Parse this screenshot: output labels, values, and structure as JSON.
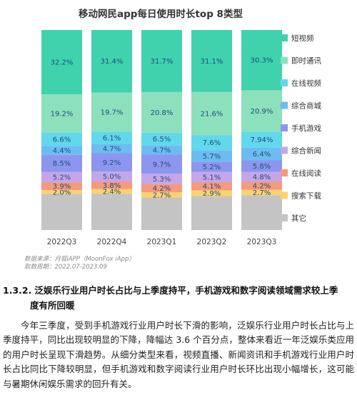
{
  "chart_data": {
    "type": "bar",
    "stacked": true,
    "title": "移动网民app每日使用时长top 8类型",
    "categories": [
      "2022Q3",
      "2022Q4",
      "2023Q1",
      "2023Q2",
      "2023Q3"
    ],
    "series": [
      {
        "name": "其它",
        "color": "#c4c4c4",
        "values": [
          18.0,
          18.2,
          16.6,
          17.0,
          17.5
        ],
        "labels": [
          "",
          "",
          "",
          "",
          ""
        ]
      },
      {
        "name": "搜索下载",
        "color": "#fbd36e",
        "values": [
          2.0,
          2.4,
          2.7,
          2.9,
          2.7
        ],
        "labels": [
          "2.0%",
          "2.4%",
          "2.7%",
          "2.9%",
          "2.7%"
        ]
      },
      {
        "name": "在线阅读",
        "color": "#f49a7e",
        "values": [
          3.9,
          3.8,
          4.2,
          4.1,
          4.2
        ],
        "labels": [
          "3.9%",
          "3.8%",
          "4.2%",
          "4.1%",
          "4.2%"
        ]
      },
      {
        "name": "综合新闻",
        "color": "#c5a6e9",
        "values": [
          5.2,
          5.0,
          5.3,
          5.1,
          4.8
        ],
        "labels": [
          "5.2%",
          "5.0%",
          "5.3%",
          "5.1%",
          "4.8%"
        ]
      },
      {
        "name": "手机游戏",
        "color": "#8c96ee",
        "values": [
          8.5,
          9.2,
          9.7,
          5.2,
          5.8
        ],
        "labels": [
          "8.5%",
          "9.2%",
          "9.7%",
          "5.2%",
          "5.8%"
        ]
      },
      {
        "name": "综合商城",
        "color": "#6cbcf1",
        "values": [
          4.4,
          4.7,
          4.7,
          5.7,
          6.4
        ],
        "labels": [
          "4.4%",
          "4.7%",
          "4.7%",
          "5.7%",
          "6.4%"
        ]
      },
      {
        "name": "在线视频",
        "color": "#61d8ec",
        "values": [
          6.6,
          6.1,
          6.5,
          7.6,
          7.94
        ],
        "labels": [
          "6.6%",
          "6.1%",
          "6.5%",
          "7.6%",
          "7.94%"
        ]
      },
      {
        "name": "即时通讯",
        "color": "#8de0bc",
        "values": [
          19.2,
          19.7,
          20.8,
          21.6,
          20.9
        ],
        "labels": [
          "19.2%",
          "19.7%",
          "20.8%",
          "21.6%",
          "20.9%"
        ]
      },
      {
        "name": "短视频",
        "color": "#3fd2ad",
        "values": [
          32.2,
          31.4,
          31.7,
          31.1,
          30.3
        ],
        "labels": [
          "32.2%",
          "31.4%",
          "31.7%",
          "31.1%",
          "30.3%"
        ]
      }
    ],
    "legend_order": [
      "短视频",
      "即时通讯",
      "在线视频",
      "综合商城",
      "手机游戏",
      "综合新闻",
      "在线阅读",
      "搜索下载",
      "其它"
    ],
    "legend_position": "right",
    "ylim": [
      0,
      100
    ],
    "grid": false
  },
  "source": {
    "line1": "数据来源：月狐iAPP（MoonFox iApp）",
    "line2": "取数周期：2022.07-2023.09"
  },
  "section": {
    "number": "1.3.2.",
    "title_line1": "泛娱乐行业用户时长占比与上季度持平，手机游戏和数字阅读领域需求较上季",
    "title_line2": "度有所回暖",
    "paragraph": "今年三季度，受到手机游戏行业用户时长下滑的影响，泛娱乐行业用户时长占比与上季度持平，同比出现较明显的下降，降幅达 3.6 个百分点，整体来看近一年泛娱乐类应用的用户时长呈现下滑趋势。从细分类型来看，视频直播、新闻资讯和手机游戏行业用户时长占比同比下降较明显，但手机游戏和数字阅读行业用户时长环比出现小幅增长，这可能与暑期休闲娱乐需求的回升有关。"
  }
}
